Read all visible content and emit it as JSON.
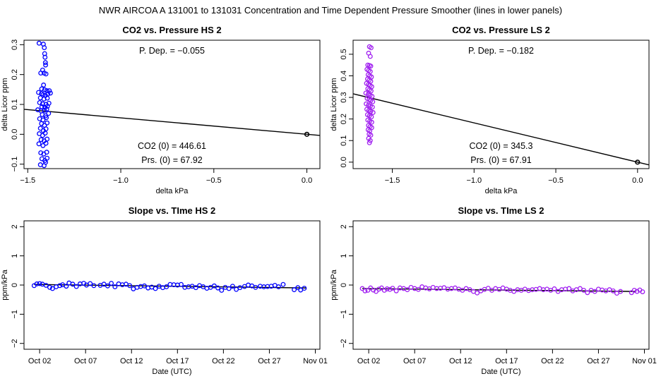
{
  "figure": {
    "title": "NWR   AIRCOA A   131001 to 131031   Concentration and Time Dependent Pressure Smoother (lines in lower panels)"
  },
  "colors": {
    "hs": "#0000ff",
    "ls": "#a020f0",
    "line": "#000000"
  },
  "chart_data": [
    {
      "id": "co2-pressure-hs",
      "type": "scatter",
      "title": "CO2 vs. Pressure HS 2",
      "xlabel": "delta kPa",
      "ylabel": "delta Licor ppm",
      "xlim": [
        -1.52,
        0.07
      ],
      "ylim": [
        -0.115,
        0.315
      ],
      "xticks": [
        -1.5,
        -1.0,
        -0.5,
        0.0
      ],
      "xtick_labels": [
        "−1.5",
        "−1.0",
        "−0.5",
        "0.0"
      ],
      "yticks": [
        -0.1,
        0.0,
        0.1,
        0.2,
        0.3
      ],
      "ytick_labels": [
        "−0.1",
        "0.0",
        "0.1",
        "0.2",
        "0.3"
      ],
      "annotations": {
        "pdep": "P. Dep. =  −0.055",
        "co2_0": "CO2 (0) =  446.61",
        "prs_0": "Prs. (0) =  67.92"
      },
      "fit": {
        "slope": -0.055,
        "intercept": 0.0
      },
      "zero_point": [
        0.0,
        0.0
      ],
      "points": [
        [
          -1.439,
          0.305
        ],
        [
          -1.416,
          0.302
        ],
        [
          -1.411,
          0.29
        ],
        [
          -1.409,
          0.27
        ],
        [
          -1.407,
          0.258
        ],
        [
          -1.405,
          0.24
        ],
        [
          -1.404,
          0.232
        ],
        [
          -1.42,
          0.215
        ],
        [
          -1.43,
          0.205
        ],
        [
          -1.412,
          0.205
        ],
        [
          -1.402,
          0.202
        ],
        [
          -1.415,
          0.165
        ],
        [
          -1.425,
          0.152
        ],
        [
          -1.409,
          0.149
        ],
        [
          -1.397,
          0.146
        ],
        [
          -1.384,
          0.146
        ],
        [
          -1.442,
          0.14
        ],
        [
          -1.426,
          0.136
        ],
        [
          -1.418,
          0.132
        ],
        [
          -1.405,
          0.13
        ],
        [
          -1.392,
          0.135
        ],
        [
          -1.378,
          0.138
        ],
        [
          -1.432,
          0.122
        ],
        [
          -1.413,
          0.118
        ],
        [
          -1.395,
          0.121
        ],
        [
          -1.436,
          0.106
        ],
        [
          -1.42,
          0.102
        ],
        [
          -1.402,
          0.1
        ],
        [
          -1.386,
          0.104
        ],
        [
          -1.424,
          0.092
        ],
        [
          -1.408,
          0.09
        ],
        [
          -1.394,
          0.094
        ],
        [
          -1.446,
          0.082
        ],
        [
          -1.428,
          0.078
        ],
        [
          -1.41,
          0.08
        ],
        [
          -1.398,
          0.084
        ],
        [
          -1.422,
          0.066
        ],
        [
          -1.404,
          0.062
        ],
        [
          -1.388,
          0.07
        ],
        [
          -1.436,
          0.052
        ],
        [
          -1.418,
          0.048
        ],
        [
          -1.4,
          0.056
        ],
        [
          -1.426,
          0.036
        ],
        [
          -1.41,
          0.03
        ],
        [
          -1.396,
          0.038
        ],
        [
          -1.432,
          0.02
        ],
        [
          -1.416,
          0.012
        ],
        [
          -1.402,
          0.018
        ],
        [
          -1.438,
          0.002
        ],
        [
          -1.42,
          -0.004
        ],
        [
          -1.406,
          0.004
        ],
        [
          -1.428,
          -0.018
        ],
        [
          -1.412,
          -0.022
        ],
        [
          -1.396,
          -0.016
        ],
        [
          -1.44,
          -0.032
        ],
        [
          -1.418,
          -0.038
        ],
        [
          -1.402,
          -0.03
        ],
        [
          -1.43,
          -0.062
        ],
        [
          -1.414,
          -0.066
        ],
        [
          -1.398,
          -0.06
        ],
        [
          -1.424,
          -0.082
        ],
        [
          -1.408,
          -0.088
        ],
        [
          -1.396,
          -0.08
        ],
        [
          -1.432,
          -0.102
        ],
        [
          -1.412,
          -0.105
        ],
        [
          -1.404,
          -0.094
        ]
      ]
    },
    {
      "id": "co2-pressure-ls",
      "type": "scatter",
      "title": "CO2 vs. Pressure LS 2",
      "xlabel": "delta kPa",
      "ylabel": "delta Licor ppm",
      "xlim": [
        -1.74,
        0.07
      ],
      "ylim": [
        -0.03,
        0.565
      ],
      "xticks": [
        -1.5,
        -1.0,
        -0.5,
        0.0
      ],
      "xtick_labels": [
        "−1.5",
        "−1.0",
        "−0.5",
        "0.0"
      ],
      "yticks": [
        0.0,
        0.1,
        0.2,
        0.3,
        0.4,
        0.5
      ],
      "ytick_labels": [
        "0.0",
        "0.1",
        "0.2",
        "0.3",
        "0.4",
        "0.5"
      ],
      "annotations": {
        "pdep": "P. Dep. =  −0.182",
        "co2_0": "CO2 (0) =  345.3",
        "prs_0": "Prs. (0) =  67.91"
      },
      "fit": {
        "slope": -0.182,
        "intercept": 0.0
      },
      "zero_point": [
        0.0,
        0.0
      ],
      "points": [
        [
          -1.64,
          0.535
        ],
        [
          -1.63,
          0.53
        ],
        [
          -1.645,
          0.505
        ],
        [
          -1.635,
          0.49
        ],
        [
          -1.65,
          0.45
        ],
        [
          -1.64,
          0.448
        ],
        [
          -1.632,
          0.445
        ],
        [
          -1.655,
          0.43
        ],
        [
          -1.645,
          0.425
        ],
        [
          -1.635,
          0.42
        ],
        [
          -1.648,
          0.405
        ],
        [
          -1.638,
          0.4
        ],
        [
          -1.628,
          0.395
        ],
        [
          -1.652,
          0.385
        ],
        [
          -1.642,
          0.38
        ],
        [
          -1.632,
          0.375
        ],
        [
          -1.658,
          0.365
        ],
        [
          -1.646,
          0.36
        ],
        [
          -1.636,
          0.355
        ],
        [
          -1.626,
          0.35
        ],
        [
          -1.65,
          0.34
        ],
        [
          -1.64,
          0.335
        ],
        [
          -1.63,
          0.33
        ],
        [
          -1.662,
          0.32
        ],
        [
          -1.648,
          0.315
        ],
        [
          -1.636,
          0.31
        ],
        [
          -1.624,
          0.305
        ],
        [
          -1.654,
          0.295
        ],
        [
          -1.642,
          0.29
        ],
        [
          -1.632,
          0.285
        ],
        [
          -1.62,
          0.28
        ],
        [
          -1.66,
          0.27
        ],
        [
          -1.646,
          0.265
        ],
        [
          -1.634,
          0.26
        ],
        [
          -1.622,
          0.255
        ],
        [
          -1.656,
          0.245
        ],
        [
          -1.644,
          0.24
        ],
        [
          -1.632,
          0.235
        ],
        [
          -1.618,
          0.23
        ],
        [
          -1.652,
          0.22
        ],
        [
          -1.64,
          0.215
        ],
        [
          -1.628,
          0.21
        ],
        [
          -1.65,
          0.195
        ],
        [
          -1.638,
          0.19
        ],
        [
          -1.626,
          0.185
        ],
        [
          -1.646,
          0.17
        ],
        [
          -1.636,
          0.165
        ],
        [
          -1.626,
          0.16
        ],
        [
          -1.648,
          0.15
        ],
        [
          -1.638,
          0.145
        ],
        [
          -1.642,
          0.13
        ],
        [
          -1.632,
          0.125
        ],
        [
          -1.645,
          0.11
        ],
        [
          -1.635,
          0.1
        ],
        [
          -1.64,
          0.09
        ]
      ]
    },
    {
      "id": "slope-time-hs",
      "type": "line",
      "title": "Slope vs. TIme HS 2",
      "xlabel": "Date (UTC)",
      "ylabel": "ppm/kPa",
      "xlim": [
        -0.7,
        31.5
      ],
      "ylim": [
        -2.2,
        2.2
      ],
      "xticks": [
        1,
        6,
        11,
        16,
        21,
        26,
        31
      ],
      "xtick_labels": [
        "Oct 02",
        "Oct 07",
        "Oct 12",
        "Oct 17",
        "Oct 22",
        "Oct 27",
        "Nov 01"
      ],
      "yticks": [
        -2,
        -1,
        0,
        1,
        2
      ],
      "ytick_labels": [
        "−2",
        "−1",
        "0",
        "1",
        "2"
      ],
      "smoother": [
        [
          0.4,
          0.02
        ],
        [
          30.0,
          -0.1
        ]
      ],
      "points": [
        [
          0.4,
          -0.02
        ],
        [
          0.7,
          0.04
        ],
        [
          1.0,
          0.05
        ],
        [
          1.3,
          0.03
        ],
        [
          1.7,
          -0.01
        ],
        [
          2.1,
          -0.08
        ],
        [
          2.4,
          -0.12
        ],
        [
          2.8,
          -0.06
        ],
        [
          3.2,
          -0.02
        ],
        [
          3.5,
          0.01
        ],
        [
          3.9,
          -0.04
        ],
        [
          4.2,
          0.07
        ],
        [
          4.6,
          0.03
        ],
        [
          5.0,
          -0.05
        ],
        [
          5.4,
          0.04
        ],
        [
          5.8,
          0.06
        ],
        [
          6.1,
          0.0
        ],
        [
          6.5,
          0.05
        ],
        [
          6.9,
          -0.02
        ],
        [
          7.6,
          -0.01
        ],
        [
          8.0,
          0.03
        ],
        [
          8.4,
          -0.03
        ],
        [
          8.8,
          0.06
        ],
        [
          9.2,
          -0.06
        ],
        [
          9.6,
          0.04
        ],
        [
          10.0,
          0.01
        ],
        [
          10.4,
          0.03
        ],
        [
          10.8,
          -0.02
        ],
        [
          11.2,
          -0.13
        ],
        [
          11.6,
          -0.08
        ],
        [
          12.0,
          -0.05
        ],
        [
          12.4,
          -0.03
        ],
        [
          12.8,
          -0.1
        ],
        [
          13.2,
          -0.07
        ],
        [
          13.6,
          -0.12
        ],
        [
          14.0,
          -0.04
        ],
        [
          14.4,
          -0.09
        ],
        [
          14.8,
          -0.06
        ],
        [
          15.2,
          0.02
        ],
        [
          15.6,
          0.01
        ],
        [
          16.0,
          0.0
        ],
        [
          16.4,
          0.02
        ],
        [
          16.8,
          -0.08
        ],
        [
          17.2,
          -0.06
        ],
        [
          17.6,
          -0.04
        ],
        [
          18.0,
          -0.09
        ],
        [
          18.4,
          -0.02
        ],
        [
          18.8,
          -0.06
        ],
        [
          19.2,
          -0.11
        ],
        [
          19.6,
          -0.08
        ],
        [
          20.0,
          -0.03
        ],
        [
          20.4,
          -0.1
        ],
        [
          20.8,
          -0.18
        ],
        [
          21.2,
          -0.08
        ],
        [
          21.6,
          -0.12
        ],
        [
          22.0,
          -0.04
        ],
        [
          22.4,
          -0.15
        ],
        [
          22.8,
          -0.09
        ],
        [
          23.3,
          -0.05
        ],
        [
          23.7,
          0.0
        ],
        [
          24.1,
          -0.03
        ],
        [
          24.5,
          -0.08
        ],
        [
          25.0,
          -0.04
        ],
        [
          25.4,
          -0.06
        ],
        [
          25.8,
          -0.05
        ],
        [
          26.2,
          -0.04
        ],
        [
          26.6,
          -0.01
        ],
        [
          27.0,
          -0.06
        ],
        [
          27.5,
          0.02
        ],
        [
          28.7,
          -0.16
        ],
        [
          29.1,
          -0.09
        ],
        [
          29.4,
          -0.17
        ],
        [
          29.8,
          -0.11
        ]
      ]
    },
    {
      "id": "slope-time-ls",
      "type": "line",
      "title": "Slope vs. TIme LS 2",
      "xlabel": "Date (UTC)",
      "ylabel": "ppm/kPa",
      "xlim": [
        -0.7,
        31.5
      ],
      "ylim": [
        -2.2,
        2.2
      ],
      "xticks": [
        1,
        6,
        11,
        16,
        21,
        26,
        31
      ],
      "xtick_labels": [
        "Oct 02",
        "Oct 07",
        "Oct 12",
        "Oct 17",
        "Oct 22",
        "Oct 27",
        "Nov 01"
      ],
      "yticks": [
        -2,
        -1,
        0,
        1,
        2
      ],
      "ytick_labels": [
        "−2",
        "−1",
        "0",
        "1",
        "2"
      ],
      "smoother": [
        [
          0.3,
          -0.12
        ],
        [
          30.0,
          -0.22
        ]
      ],
      "points": [
        [
          0.3,
          -0.12
        ],
        [
          0.6,
          -0.2
        ],
        [
          0.9,
          -0.18
        ],
        [
          1.2,
          -0.1
        ],
        [
          1.5,
          -0.17
        ],
        [
          1.8,
          -0.22
        ],
        [
          2.1,
          -0.14
        ],
        [
          2.4,
          -0.1
        ],
        [
          2.7,
          -0.18
        ],
        [
          3.0,
          -0.13
        ],
        [
          3.3,
          -0.15
        ],
        [
          3.6,
          -0.11
        ],
        [
          4.0,
          -0.2
        ],
        [
          4.4,
          -0.1
        ],
        [
          4.8,
          -0.12
        ],
        [
          5.2,
          -0.16
        ],
        [
          5.6,
          -0.08
        ],
        [
          6.0,
          -0.12
        ],
        [
          6.4,
          -0.15
        ],
        [
          6.8,
          -0.06
        ],
        [
          7.2,
          -0.1
        ],
        [
          7.6,
          -0.13
        ],
        [
          8.0,
          -0.08
        ],
        [
          8.4,
          -0.12
        ],
        [
          8.8,
          -0.11
        ],
        [
          9.2,
          -0.09
        ],
        [
          9.6,
          -0.14
        ],
        [
          10.0,
          -0.12
        ],
        [
          10.4,
          -0.1
        ],
        [
          10.8,
          -0.14
        ],
        [
          11.2,
          -0.18
        ],
        [
          11.6,
          -0.12
        ],
        [
          12.0,
          -0.16
        ],
        [
          12.4,
          -0.22
        ],
        [
          12.8,
          -0.27
        ],
        [
          13.2,
          -0.2
        ],
        [
          13.6,
          -0.15
        ],
        [
          14.0,
          -0.11
        ],
        [
          14.4,
          -0.18
        ],
        [
          14.8,
          -0.12
        ],
        [
          15.2,
          -0.15
        ],
        [
          15.6,
          -0.1
        ],
        [
          16.0,
          -0.14
        ],
        [
          16.4,
          -0.18
        ],
        [
          16.8,
          -0.22
        ],
        [
          17.2,
          -0.16
        ],
        [
          17.6,
          -0.18
        ],
        [
          18.0,
          -0.14
        ],
        [
          18.4,
          -0.19
        ],
        [
          18.8,
          -0.16
        ],
        [
          19.2,
          -0.15
        ],
        [
          19.6,
          -0.12
        ],
        [
          20.0,
          -0.16
        ],
        [
          20.4,
          -0.14
        ],
        [
          20.8,
          -0.18
        ],
        [
          21.2,
          -0.13
        ],
        [
          21.6,
          -0.22
        ],
        [
          22.0,
          -0.16
        ],
        [
          22.4,
          -0.14
        ],
        [
          22.8,
          -0.12
        ],
        [
          23.2,
          -0.2
        ],
        [
          23.6,
          -0.16
        ],
        [
          24.0,
          -0.12
        ],
        [
          24.4,
          -0.18
        ],
        [
          24.8,
          -0.26
        ],
        [
          25.2,
          -0.18
        ],
        [
          25.6,
          -0.22
        ],
        [
          26.0,
          -0.14
        ],
        [
          26.4,
          -0.17
        ],
        [
          26.8,
          -0.2
        ],
        [
          27.2,
          -0.16
        ],
        [
          27.6,
          -0.2
        ],
        [
          28.0,
          -0.28
        ],
        [
          28.4,
          -0.22
        ],
        [
          29.6,
          -0.26
        ],
        [
          29.9,
          -0.18
        ],
        [
          30.2,
          -0.22
        ],
        [
          30.5,
          -0.17
        ],
        [
          30.8,
          -0.23
        ]
      ]
    }
  ]
}
